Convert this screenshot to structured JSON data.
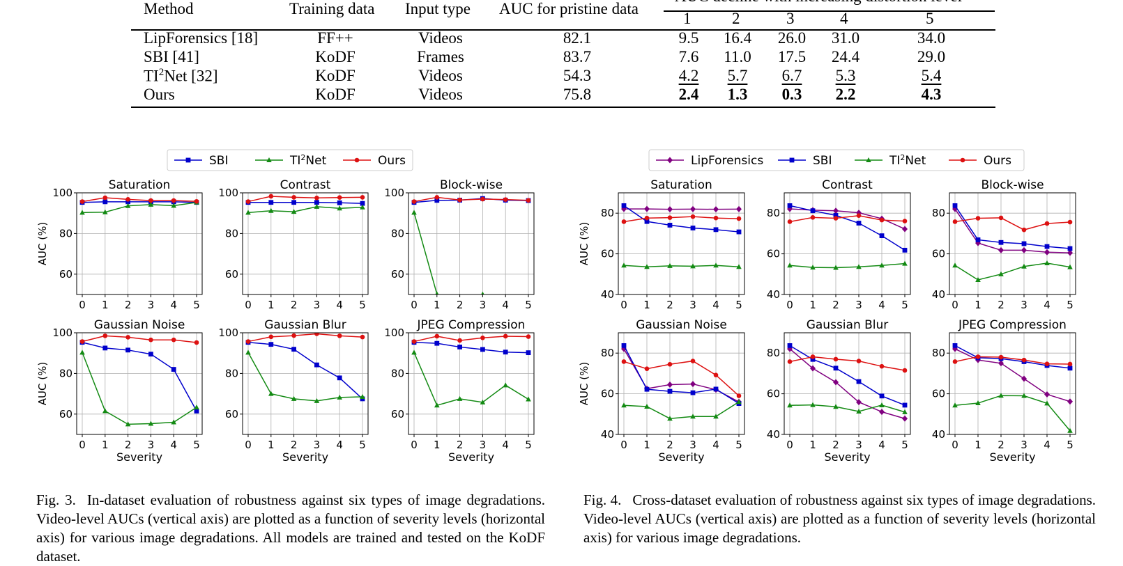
{
  "table": {
    "headers": {
      "method": "Method",
      "training": "Training data",
      "input": "Input type",
      "auc": "AUC for pristine data",
      "decline": "AUC decline with increasing distortion level",
      "levels": [
        "1",
        "2",
        "3",
        "4",
        "5"
      ]
    },
    "rows": [
      {
        "method": "LipForensics [18]",
        "training": "FF++",
        "input": "Videos",
        "auc": "82.1",
        "levels": [
          "9.5",
          "16.4",
          "26.0",
          "31.0",
          "34.0"
        ],
        "style": ""
      },
      {
        "method": "SBI [41]",
        "training": "KoDF",
        "input": "Frames",
        "auc": "83.7",
        "levels": [
          "7.6",
          "11.0",
          "17.5",
          "24.4",
          "29.0"
        ],
        "style": ""
      },
      {
        "method_pre": "TI",
        "method_sup": "2",
        "method_post": "Net [32]",
        "training": "KoDF",
        "input": "Videos",
        "auc": "54.3",
        "levels": [
          "4.2",
          "5.7",
          "6.7",
          "5.3",
          "5.4"
        ],
        "style": "underline"
      },
      {
        "method": "Ours",
        "training": "KoDF",
        "input": "Videos",
        "auc": "75.8",
        "levels": [
          "2.4",
          "1.3",
          "0.3",
          "2.2",
          "4.3"
        ],
        "style": "bold"
      }
    ]
  },
  "colors": {
    "LipForensics": "#800080",
    "SBI": "#0000cc",
    "TI2Net": "#138a13",
    "Ours": "#dd1111"
  },
  "chart_data": [
    {
      "figure": "Fig. 3",
      "type": "line",
      "legend": [
        "SBI",
        "TI2Net",
        "Ours"
      ],
      "legend_position": "top-center",
      "ylabel": "AUC (%)",
      "xlabel": "Severity",
      "x": [
        0,
        1,
        2,
        3,
        4,
        5
      ],
      "ylim": [
        50,
        100
      ],
      "yticks": [
        60,
        80,
        100
      ],
      "grid": true,
      "panels": [
        {
          "title": "Saturation",
          "series": [
            {
              "name": "SBI",
              "values": [
                95.3,
                95.6,
                95.6,
                95.6,
                95.6,
                95.3
              ]
            },
            {
              "name": "TI2Net",
              "values": [
                90.3,
                90.5,
                93.6,
                94.2,
                93.7,
                95.3
              ]
            },
            {
              "name": "Ours",
              "values": [
                95.7,
                97.6,
                96.8,
                96.2,
                96.2,
                95.8
              ]
            }
          ]
        },
        {
          "title": "Contrast",
          "series": [
            {
              "name": "SBI",
              "values": [
                95.3,
                95.3,
                95.3,
                95.3,
                95.1,
                94.8
              ]
            },
            {
              "name": "TI2Net",
              "values": [
                90.3,
                91.2,
                90.7,
                93.2,
                92.4,
                92.9
              ]
            },
            {
              "name": "Ours",
              "values": [
                95.7,
                98.3,
                97.8,
                97.5,
                97.7,
                97.8
              ]
            }
          ]
        },
        {
          "title": "Block-wise",
          "series": [
            {
              "name": "SBI",
              "values": [
                95.3,
                96.3,
                96.4,
                97.2,
                96.4,
                96.2
              ]
            },
            {
              "name": "TI2Net",
              "values": [
                90.3,
                50.2,
                44.0,
                50.1,
                45.0,
                45.0
              ]
            },
            {
              "name": "Ours",
              "values": [
                95.7,
                97.8,
                96.5,
                96.9,
                96.7,
                96.3
              ]
            }
          ]
        },
        {
          "title": "Gaussian Noise",
          "series": [
            {
              "name": "SBI",
              "values": [
                95.3,
                92.5,
                91.5,
                89.5,
                82.0,
                61.5
              ]
            },
            {
              "name": "TI2Net",
              "values": [
                90.3,
                61.5,
                55.0,
                55.3,
                56.0,
                63.3
              ]
            },
            {
              "name": "Ours",
              "values": [
                95.7,
                98.5,
                97.8,
                96.5,
                96.5,
                95.2
              ]
            }
          ]
        },
        {
          "title": "Gaussian Blur",
          "series": [
            {
              "name": "SBI",
              "values": [
                95.3,
                94.3,
                91.9,
                84.2,
                77.8,
                67.5
              ]
            },
            {
              "name": "TI2Net",
              "values": [
                90.3,
                70.0,
                67.5,
                66.5,
                68.2,
                68.5
              ]
            },
            {
              "name": "Ours",
              "values": [
                95.7,
                98.0,
                98.6,
                99.5,
                98.5,
                97.9
              ]
            }
          ]
        },
        {
          "title": "JPEG Compression",
          "series": [
            {
              "name": "SBI",
              "values": [
                95.3,
                94.8,
                93.0,
                91.8,
                90.5,
                90.2
              ]
            },
            {
              "name": "TI2Net",
              "values": [
                90.3,
                64.3,
                67.5,
                65.8,
                74.2,
                67.3
              ]
            },
            {
              "name": "Ours",
              "values": [
                95.7,
                98.3,
                96.2,
                97.5,
                98.3,
                98.1
              ]
            }
          ]
        }
      ]
    },
    {
      "figure": "Fig. 4",
      "type": "line",
      "legend": [
        "LipForensics",
        "SBI",
        "TI2Net",
        "Ours"
      ],
      "legend_position": "top-center",
      "ylabel": "AUC (%)",
      "xlabel": "Severity",
      "x": [
        0,
        1,
        2,
        3,
        4,
        5
      ],
      "ylim": [
        40,
        90
      ],
      "yticks": [
        40,
        60,
        80
      ],
      "grid": true,
      "panels": [
        {
          "title": "Saturation",
          "series": [
            {
              "name": "LipForensics",
              "values": [
                82.1,
                82.1,
                81.9,
                82.0,
                81.9,
                82.0
              ]
            },
            {
              "name": "SBI",
              "values": [
                83.7,
                75.9,
                74.1,
                72.7,
                71.9,
                70.8
              ]
            },
            {
              "name": "TI2Net",
              "values": [
                54.3,
                53.6,
                54.1,
                53.9,
                54.3,
                53.6
              ]
            },
            {
              "name": "Ours",
              "values": [
                75.8,
                77.6,
                77.8,
                78.3,
                77.6,
                77.3
              ]
            }
          ]
        },
        {
          "title": "Contrast",
          "series": [
            {
              "name": "LipForensics",
              "values": [
                82.1,
                81.5,
                81.2,
                80.2,
                77.3,
                72.2
              ]
            },
            {
              "name": "SBI",
              "values": [
                83.7,
                81.2,
                78.9,
                75.1,
                68.9,
                61.8
              ]
            },
            {
              "name": "TI2Net",
              "values": [
                54.3,
                53.3,
                53.2,
                53.6,
                54.3,
                55.2
              ]
            },
            {
              "name": "Ours",
              "values": [
                75.8,
                77.9,
                77.5,
                78.8,
                76.6,
                76.1
              ]
            }
          ]
        },
        {
          "title": "Block-wise",
          "series": [
            {
              "name": "LipForensics",
              "values": [
                82.1,
                65.3,
                61.8,
                61.8,
                60.8,
                60.5
              ]
            },
            {
              "name": "SBI",
              "values": [
                83.7,
                66.9,
                65.6,
                65.0,
                63.6,
                62.6
              ]
            },
            {
              "name": "TI2Net",
              "values": [
                54.3,
                47.2,
                50.0,
                53.8,
                55.4,
                53.5
              ]
            },
            {
              "name": "Ours",
              "values": [
                75.8,
                77.5,
                77.7,
                71.8,
                74.9,
                75.6
              ]
            }
          ]
        },
        {
          "title": "Gaussian Noise",
          "series": [
            {
              "name": "LipForensics",
              "values": [
                82.1,
                62.5,
                64.5,
                64.8,
                62.0,
                56.0
              ]
            },
            {
              "name": "SBI",
              "values": [
                83.7,
                62.2,
                61.2,
                60.5,
                62.3,
                55.2
              ]
            },
            {
              "name": "TI2Net",
              "values": [
                54.3,
                53.7,
                47.8,
                48.8,
                48.8,
                56.0
              ]
            },
            {
              "name": "Ours",
              "values": [
                75.8,
                72.3,
                74.5,
                76.1,
                69.2,
                59.0
              ]
            }
          ]
        },
        {
          "title": "Gaussian Blur",
          "series": [
            {
              "name": "LipForensics",
              "values": [
                82.1,
                72.5,
                65.7,
                55.9,
                51.1,
                47.8
              ]
            },
            {
              "name": "SBI",
              "values": [
                83.7,
                76.9,
                72.6,
                66.0,
                58.9,
                54.4
              ]
            },
            {
              "name": "TI2Net",
              "values": [
                54.3,
                54.5,
                53.6,
                51.3,
                54.4,
                51.0
              ]
            },
            {
              "name": "Ours",
              "values": [
                75.8,
                78.2,
                77.0,
                76.1,
                73.5,
                71.5
              ]
            }
          ]
        },
        {
          "title": "JPEG Compression",
          "series": [
            {
              "name": "LipForensics",
              "values": [
                82.1,
                76.6,
                75.0,
                67.4,
                59.7,
                56.2
              ]
            },
            {
              "name": "SBI",
              "values": [
                83.7,
                77.7,
                77.3,
                75.8,
                73.9,
                72.6
              ]
            },
            {
              "name": "TI2Net",
              "values": [
                54.3,
                55.4,
                59.1,
                59.0,
                55.3,
                41.8
              ]
            },
            {
              "name": "Ours",
              "values": [
                75.8,
                78.2,
                78.0,
                76.6,
                74.7,
                74.6
              ]
            }
          ]
        }
      ]
    }
  ],
  "captions": [
    {
      "label": "Fig. 3.",
      "text": "In-dataset evaluation of robustness against six types of image degradations. Video-level AUCs (vertical axis) are plotted as a function of severity levels (horizontal axis) for various image degradations. All models are trained and tested on the KoDF dataset."
    },
    {
      "label": "Fig. 4.",
      "text": "Cross-dataset evaluation of robustness against six types of image degradations. Video-level AUCs (vertical axis) are plotted as a function of severity levels (horizontal axis) for various image degradations."
    }
  ]
}
